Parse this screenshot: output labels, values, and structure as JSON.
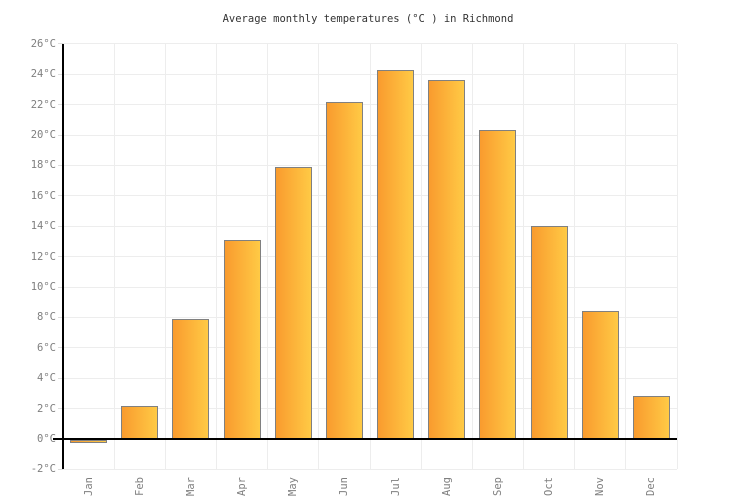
{
  "chart_data": {
    "type": "bar",
    "title": "Average monthly temperatures (°C ) in Richmond",
    "categories": [
      "Jan",
      "Feb",
      "Mar",
      "Apr",
      "May",
      "Jun",
      "Jul",
      "Aug",
      "Sep",
      "Oct",
      "Nov",
      "Dec"
    ],
    "values": [
      -0.2,
      2.2,
      7.9,
      13.1,
      17.9,
      22.2,
      24.3,
      23.6,
      20.3,
      14.0,
      8.4,
      2.8
    ],
    "unit": "°C",
    "ylim": [
      -2,
      26
    ],
    "ytick_step": 2,
    "ytick_labels": [
      "-2°C",
      "0°C",
      "2°C",
      "4°C",
      "6°C",
      "8°C",
      "10°C",
      "12°C",
      "14°C",
      "16°C",
      "18°C",
      "20°C",
      "22°C",
      "24°C",
      "26°C"
    ],
    "grid": "on",
    "legend": "none",
    "colors": {
      "bar_gradient_left": "#f99b2e",
      "bar_gradient_right": "#ffca45",
      "bar_border": "#808080",
      "gridline": "#ededed",
      "tick": "#dcdcdc",
      "axis": "#000000",
      "label_text": "#7f7f7f",
      "title_text": "#333333",
      "background": "#ffffff"
    }
  }
}
